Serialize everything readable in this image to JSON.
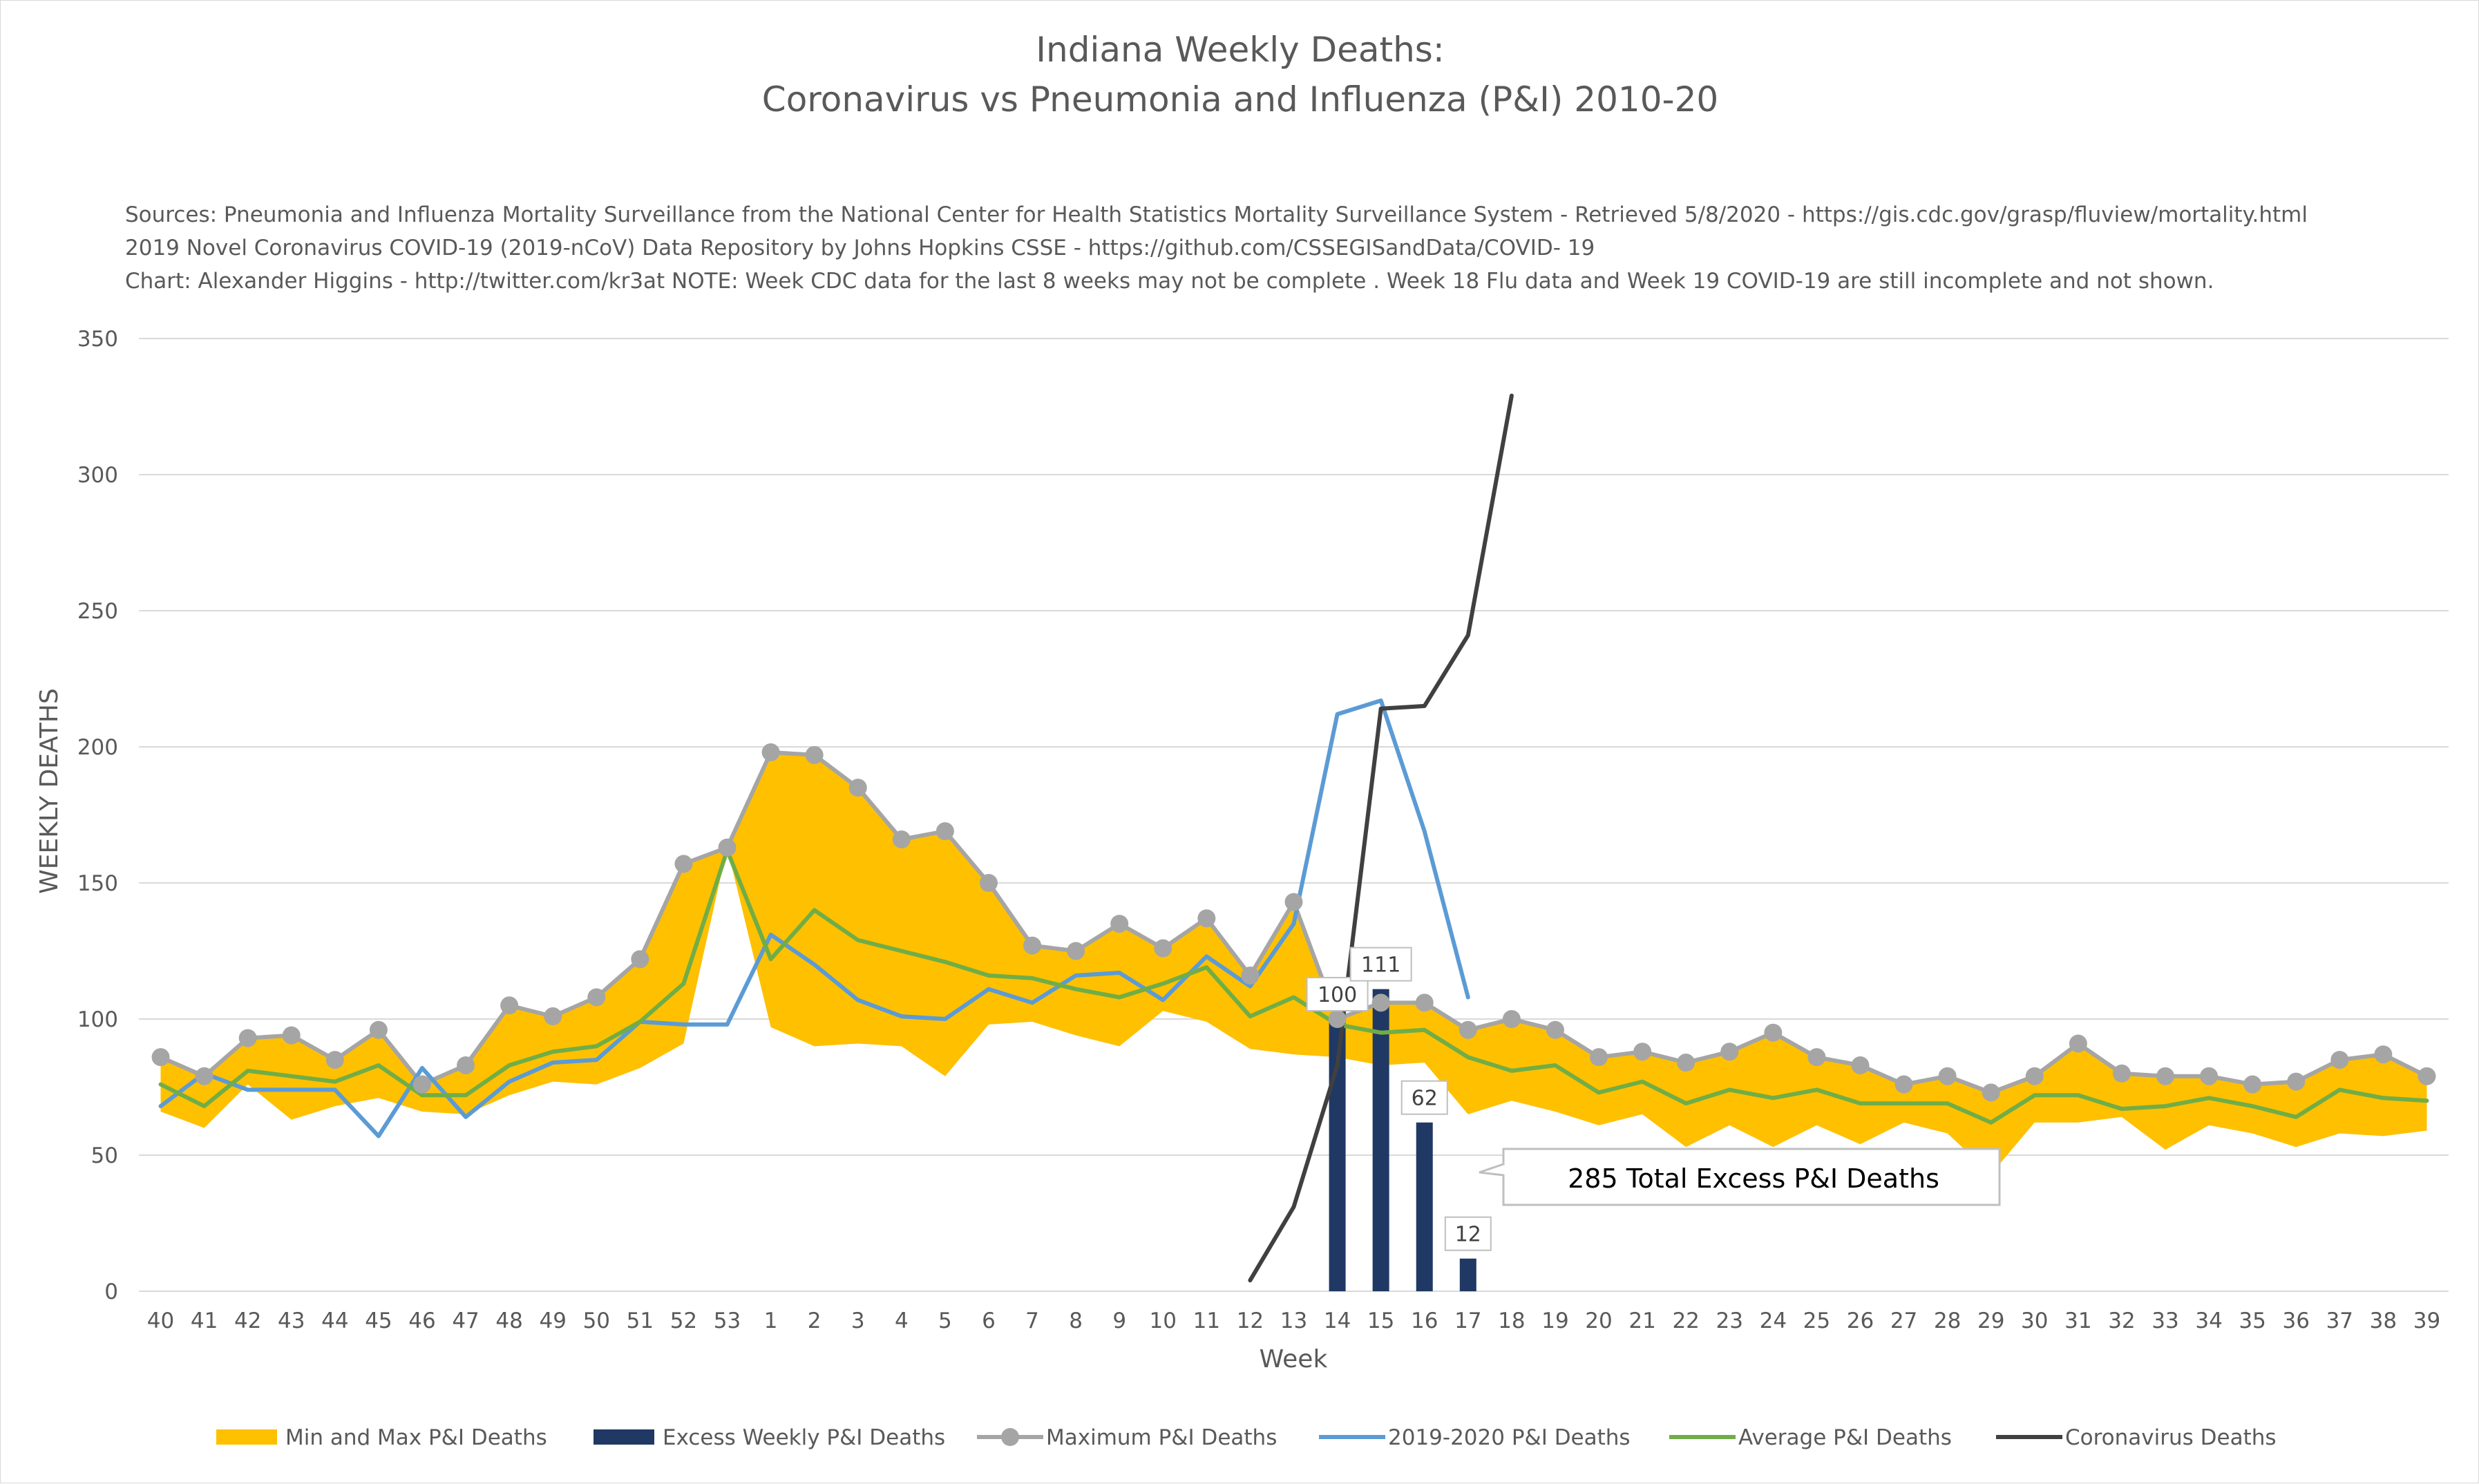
{
  "chart_data": {
    "type": "line",
    "title_lines": [
      "Indiana Weekly Deaths:",
      "Coronavirus vs Pneumonia and Influenza (P&I) 2010-20"
    ],
    "source_lines": [
      "Sources: Pneumonia and Influenza Mortality Surveillance from the National Center for Health Statistics Mortality Surveillance System - Retrieved 5/8/2020 - https://gis.cdc.gov/grasp/fluview/mortality.html",
      "2019 Novel Coronavirus COVID-19 (2019-nCoV) Data Repository by Johns Hopkins CSSE - https://github.com/CSSEGISandData/COVID- 19",
      "Chart: Alexander Higgins - http://twitter.com/kr3at   NOTE: Week CDC data for the last 8 weeks may not be complete . Week 18 Flu data and Week 19 COVID-19 are still incomplete and not shown."
    ],
    "xlabel": "Week",
    "ylabel": "WEEKLY DEATHS",
    "ylim": [
      0,
      350
    ],
    "yticks": [
      0,
      50,
      100,
      150,
      200,
      250,
      300,
      350
    ],
    "grid": "horizontal",
    "legend_position": "bottom",
    "categories": [
      "40",
      "41",
      "42",
      "43",
      "44",
      "45",
      "46",
      "47",
      "48",
      "49",
      "50",
      "51",
      "52",
      "53",
      "1",
      "2",
      "3",
      "4",
      "5",
      "6",
      "7",
      "8",
      "9",
      "10",
      "11",
      "12",
      "13",
      "14",
      "15",
      "16",
      "17",
      "18",
      "19",
      "20",
      "21",
      "22",
      "23",
      "24",
      "25",
      "26",
      "27",
      "28",
      "29",
      "30",
      "31",
      "32",
      "33",
      "34",
      "35",
      "36",
      "37",
      "38",
      "39"
    ],
    "series": [
      {
        "name": "Min and Max P&I Deaths",
        "kind": "band",
        "color": "#FFC000",
        "lower": [
          66,
          60,
          76,
          63,
          68,
          71,
          66,
          65,
          72,
          77,
          76,
          82,
          91,
          163,
          97,
          90,
          91,
          90,
          79,
          98,
          99,
          94,
          90,
          103,
          99,
          89,
          87,
          86,
          83,
          84,
          65,
          70,
          66,
          61,
          65,
          53,
          61,
          53,
          61,
          54,
          62,
          58,
          43,
          62,
          62,
          64,
          52,
          61,
          58,
          53,
          58,
          57,
          59
        ],
        "upper": [
          86,
          79,
          93,
          94,
          85,
          96,
          76,
          83,
          105,
          101,
          108,
          122,
          157,
          163,
          198,
          197,
          185,
          166,
          169,
          150,
          127,
          125,
          135,
          126,
          137,
          116,
          143,
          100,
          106,
          106,
          96,
          100,
          96,
          86,
          88,
          84,
          88,
          95,
          86,
          83,
          76,
          79,
          73,
          79,
          91,
          80,
          79,
          79,
          76,
          77,
          85,
          87,
          79
        ]
      },
      {
        "name": "Excess Weekly P&I Deaths",
        "kind": "bar",
        "color": "#203864",
        "points": [
          {
            "category": "14",
            "value": 100
          },
          {
            "category": "15",
            "value": 111
          },
          {
            "category": "16",
            "value": 62
          },
          {
            "category": "17",
            "value": 12
          }
        ]
      },
      {
        "name": "Maximum P&I Deaths",
        "kind": "line-markers",
        "color": "#A5A5A5",
        "values": [
          86,
          79,
          93,
          94,
          85,
          96,
          76,
          83,
          105,
          101,
          108,
          122,
          157,
          163,
          198,
          197,
          185,
          166,
          169,
          150,
          127,
          125,
          135,
          126,
          137,
          116,
          143,
          100,
          106,
          106,
          96,
          100,
          96,
          86,
          88,
          84,
          88,
          95,
          86,
          83,
          76,
          79,
          73,
          79,
          91,
          80,
          79,
          79,
          76,
          77,
          85,
          87,
          79
        ]
      },
      {
        "name": "2019-2020 P&I Deaths",
        "kind": "line",
        "color": "#5B9BD5",
        "values": [
          68,
          80,
          74,
          74,
          74,
          57,
          82,
          64,
          77,
          84,
          85,
          99,
          98,
          98,
          131,
          120,
          107,
          101,
          100,
          111,
          106,
          116,
          117,
          107,
          123,
          112,
          135,
          212,
          217,
          169,
          108,
          null,
          null,
          null,
          null,
          null,
          null,
          null,
          null,
          null,
          null,
          null,
          null,
          null,
          null,
          null,
          null,
          null,
          null,
          null,
          null,
          null,
          null
        ]
      },
      {
        "name": "Average P&I Deaths",
        "kind": "line",
        "color": "#70AD47",
        "values": [
          76,
          68,
          81,
          79,
          77,
          83,
          72,
          72,
          83,
          88,
          90,
          99,
          113,
          162,
          122,
          140,
          129,
          125,
          121,
          116,
          115,
          111,
          108,
          113,
          119,
          101,
          108,
          98,
          95,
          96,
          86,
          81,
          83,
          73,
          77,
          69,
          74,
          71,
          74,
          69,
          69,
          69,
          62,
          72,
          72,
          67,
          68,
          71,
          68,
          64,
          74,
          71,
          70
        ]
      },
      {
        "name": "Coronavirus Deaths",
        "kind": "line",
        "color": "#404040",
        "values": [
          null,
          null,
          null,
          null,
          null,
          null,
          null,
          null,
          null,
          null,
          null,
          null,
          null,
          null,
          null,
          null,
          null,
          null,
          null,
          null,
          null,
          null,
          null,
          null,
          null,
          4,
          31,
          83,
          214,
          215,
          241,
          329,
          null,
          null,
          null,
          null,
          null,
          null,
          null,
          null,
          null,
          null,
          null,
          null,
          null,
          null,
          null,
          null,
          null,
          null,
          null,
          null,
          null
        ]
      }
    ],
    "data_labels": [
      {
        "category": "14",
        "text": "100"
      },
      {
        "category": "15",
        "text": "111"
      },
      {
        "category": "16",
        "text": "62"
      },
      {
        "category": "17",
        "text": "12"
      }
    ],
    "callout": {
      "text": "285 Total Excess P&I Deaths"
    }
  }
}
